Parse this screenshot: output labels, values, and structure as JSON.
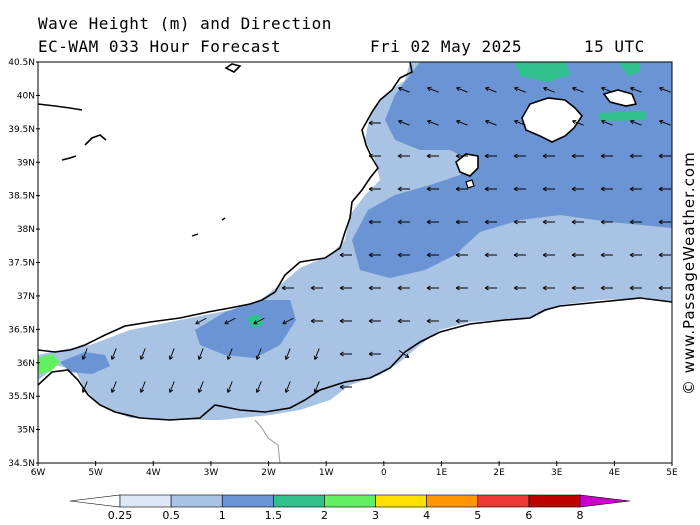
{
  "header": {
    "line1": "Wave Height (m) and Direction",
    "line2": "EC-WAM 033 Hour Forecast",
    "date": "Fri 02 May 2025",
    "time": "15 UTC"
  },
  "credit": "© www.PassageWeather.com",
  "lat_labels": [
    "40.5N",
    "40N",
    "39.5N",
    "39N",
    "38.5N",
    "38N",
    "37.5N",
    "37N",
    "36.5N",
    "36N",
    "35.5N",
    "35N",
    "34.5N"
  ],
  "lon_labels": [
    "6W",
    "5W",
    "4W",
    "3W",
    "2W",
    "1W",
    "0",
    "1E",
    "2E",
    "3E",
    "4E",
    "5E"
  ],
  "colorbar": {
    "ticks": [
      "0.25",
      "0.5",
      "1",
      "1.5",
      "2",
      "3",
      "4",
      "5",
      "6",
      "8"
    ],
    "colors": [
      "#ffffff",
      "#dde6f5",
      "#a8c3e3",
      "#6b94d4",
      "#2fc08d",
      "#62f062",
      "#ffe000",
      "#ff9500",
      "#f03838",
      "#c00000",
      "#c800c8"
    ]
  },
  "colors": {
    "sea_light": "#a8c3e3",
    "sea_mid": "#6b94d4",
    "sea_green": "#2fc08d",
    "sea_lime": "#62f062",
    "land": "#ffffff"
  }
}
